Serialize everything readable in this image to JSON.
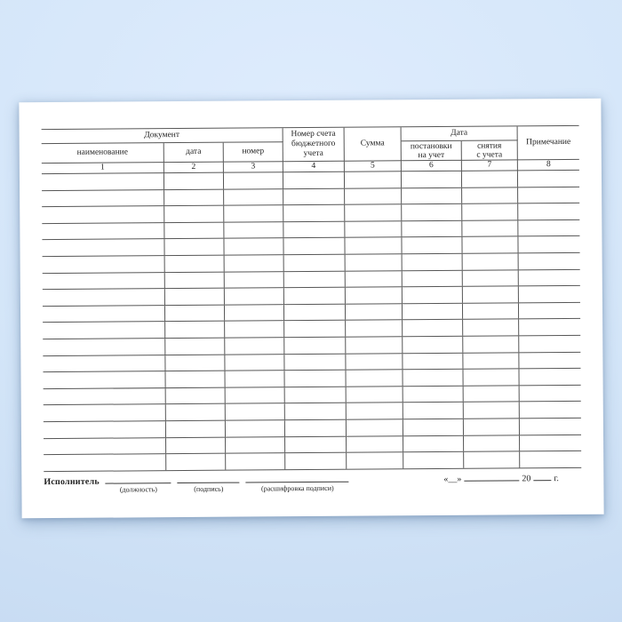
{
  "colors": {
    "background_top": "#deecfd",
    "background_bottom": "#c7dbf2",
    "paper": "#ffffff",
    "table_line": "#565656",
    "text": "#1f1f1f"
  },
  "table": {
    "header": {
      "document_group": "Документ",
      "name": "наименование",
      "date": "дата",
      "number": "номер",
      "budget_account": "Номер счета\nбюджетного\nучета",
      "sum": "Сумма",
      "date_group": "Дата",
      "registration": "постановки\nна учет",
      "deregistration": "снятия\nс учета",
      "note": "Примечание",
      "column_numbers": [
        "1",
        "2",
        "3",
        "4",
        "5",
        "6",
        "7",
        "8"
      ]
    },
    "body": {
      "row_count": 18,
      "column_count": 8
    }
  },
  "footer": {
    "executor_label": "Исполнитель",
    "position_label": "(должность)",
    "signature_label": "(подпись)",
    "signature_transcript_label": "(расшифровка подписи)",
    "day_placeholder": "«__»",
    "year_prefix": "20",
    "year_suffix": "г."
  }
}
